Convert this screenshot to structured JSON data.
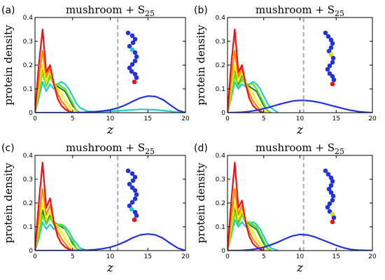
{
  "chart_data": [
    {
      "panel": "(a)",
      "type": "line",
      "title_base": "mushroom + S",
      "title_sub": "25",
      "xlabel": "z",
      "ylabel": "protein density",
      "xlim": [
        0,
        20
      ],
      "ylim": [
        0,
        0.4
      ],
      "xticks": [
        "0",
        "5",
        "10",
        "15",
        "20"
      ],
      "yticks": [
        "0",
        "0.1",
        "0.2",
        "0.3",
        "0.4"
      ],
      "cutoff_x": 11,
      "grid": false,
      "chain_highlight": {
        "index": 5,
        "color": "#22cccc"
      },
      "series": [
        {
          "color": "#0f8a1f",
          "x": [
            0,
            0.5,
            1,
            1.5,
            2,
            2.5,
            3,
            3.5,
            4,
            4.5,
            5,
            5.5,
            6
          ],
          "y": [
            0,
            0.08,
            0.18,
            0.13,
            0.16,
            0.12,
            0.11,
            0.1,
            0.09,
            0.06,
            0.03,
            0.01,
            0
          ]
        },
        {
          "color": "#22cccc",
          "x": [
            0,
            0.5,
            1,
            1.5,
            2,
            2.5,
            3,
            3.5,
            4,
            4.5,
            5,
            5.5,
            6,
            7,
            8,
            10,
            12,
            14,
            16,
            18,
            19.5
          ],
          "y": [
            0,
            0.06,
            0.13,
            0.09,
            0.12,
            0.1,
            0.12,
            0.13,
            0.12,
            0.1,
            0.07,
            0.04,
            0.02,
            0.006,
            0.004,
            0.006,
            0.01,
            0.014,
            0.012,
            0.006,
            0
          ]
        },
        {
          "color": "#66dd22",
          "x": [
            0,
            0.5,
            1,
            1.5,
            2,
            2.5,
            3,
            3.5,
            4,
            4.5,
            5,
            5.5,
            6
          ],
          "y": [
            0,
            0.08,
            0.17,
            0.11,
            0.15,
            0.12,
            0.12,
            0.11,
            0.1,
            0.07,
            0.04,
            0.01,
            0
          ]
        },
        {
          "color": "#ffee00",
          "x": [
            0,
            0.5,
            1,
            1.5,
            2,
            2.5,
            3,
            3.5,
            4,
            4.5,
            5,
            5.5
          ],
          "y": [
            0,
            0.1,
            0.2,
            0.13,
            0.17,
            0.12,
            0.1,
            0.08,
            0.05,
            0.03,
            0.01,
            0
          ]
        },
        {
          "color": "#ff8800",
          "x": [
            0,
            0.5,
            1,
            1.5,
            2,
            2.5,
            3,
            3.5,
            4,
            4.5,
            5
          ],
          "y": [
            0,
            0.14,
            0.26,
            0.15,
            0.19,
            0.12,
            0.08,
            0.05,
            0.03,
            0.01,
            0
          ]
        },
        {
          "color": "#ee1111",
          "x": [
            0,
            0.5,
            1,
            1.5,
            2,
            2.5,
            3,
            3.5,
            4,
            4.5,
            5
          ],
          "y": [
            0,
            0.2,
            0.35,
            0.17,
            0.2,
            0.12,
            0.06,
            0.03,
            0.015,
            0.005,
            0
          ]
        },
        {
          "color": "#2233dd",
          "x": [
            0,
            1,
            2,
            3,
            4,
            5,
            6,
            7,
            8,
            9,
            10,
            11,
            12,
            13,
            14,
            15,
            16,
            17,
            18,
            19,
            20
          ],
          "y": [
            0,
            0,
            0,
            0,
            0,
            0,
            0.001,
            0.002,
            0.004,
            0.007,
            0.012,
            0.02,
            0.032,
            0.048,
            0.062,
            0.07,
            0.068,
            0.055,
            0.032,
            0.01,
            0
          ]
        }
      ]
    },
    {
      "panel": "(b)",
      "type": "line",
      "title_base": "mushroom + S",
      "title_sub": "25",
      "xlabel": "z",
      "ylabel": "protein density",
      "xlim": [
        0,
        20
      ],
      "ylim": [
        0,
        0.4
      ],
      "xticks": [
        "0",
        "5",
        "10",
        "15",
        "20"
      ],
      "yticks": [
        "0",
        "0.1",
        "0.2",
        "0.3",
        "0.4"
      ],
      "cutoff_x": 10.5,
      "grid": false,
      "chain_highlight": {
        "index": 6,
        "color": "#dddd00"
      },
      "series": [
        {
          "color": "#0f8a1f",
          "x": [
            0,
            0.5,
            1,
            1.5,
            2,
            2.5,
            3,
            3.5,
            4,
            4.5,
            5,
            5.5,
            6
          ],
          "y": [
            0,
            0.08,
            0.19,
            0.12,
            0.16,
            0.12,
            0.11,
            0.1,
            0.09,
            0.06,
            0.03,
            0.01,
            0
          ]
        },
        {
          "color": "#22cccc",
          "x": [
            0,
            0.5,
            1,
            1.5,
            2,
            2.5,
            3,
            3.5,
            4,
            4.5,
            5,
            5.5,
            6,
            7
          ],
          "y": [
            0,
            0.06,
            0.13,
            0.1,
            0.12,
            0.11,
            0.12,
            0.13,
            0.12,
            0.1,
            0.07,
            0.04,
            0.02,
            0
          ]
        },
        {
          "color": "#66dd22",
          "x": [
            0,
            0.5,
            1,
            1.5,
            2,
            2.5,
            3,
            3.5,
            4,
            4.5,
            5,
            5.5,
            6
          ],
          "y": [
            0,
            0.07,
            0.16,
            0.11,
            0.14,
            0.12,
            0.12,
            0.12,
            0.1,
            0.07,
            0.04,
            0.01,
            0
          ]
        },
        {
          "color": "#ffee00",
          "x": [
            0,
            0.5,
            1,
            1.5,
            2,
            2.5,
            3,
            3.5,
            4,
            4.5,
            5,
            5.5
          ],
          "y": [
            0,
            0.1,
            0.2,
            0.13,
            0.17,
            0.12,
            0.1,
            0.08,
            0.05,
            0.03,
            0.01,
            0
          ]
        },
        {
          "color": "#ff8800",
          "x": [
            0,
            0.5,
            1,
            1.5,
            2,
            2.5,
            3,
            3.5,
            4,
            4.5,
            5
          ],
          "y": [
            0,
            0.14,
            0.26,
            0.15,
            0.19,
            0.12,
            0.08,
            0.05,
            0.03,
            0.01,
            0
          ]
        },
        {
          "color": "#ee1111",
          "x": [
            0,
            0.5,
            1,
            1.5,
            2,
            2.5,
            3,
            3.5,
            4,
            4.5,
            5
          ],
          "y": [
            0,
            0.2,
            0.35,
            0.17,
            0.2,
            0.12,
            0.06,
            0.03,
            0.015,
            0.005,
            0
          ]
        },
        {
          "color": "#2233dd",
          "x": [
            0,
            1,
            2,
            3,
            4,
            5,
            6,
            7,
            8,
            9,
            10,
            11,
            12,
            13,
            14,
            15,
            16,
            17,
            18,
            19,
            20
          ],
          "y": [
            0,
            0.001,
            0.002,
            0.005,
            0.01,
            0.017,
            0.025,
            0.034,
            0.042,
            0.049,
            0.052,
            0.051,
            0.047,
            0.041,
            0.033,
            0.025,
            0.017,
            0.01,
            0.005,
            0.002,
            0
          ]
        }
      ]
    },
    {
      "panel": "(c)",
      "type": "line",
      "title_base": "mushroom + S",
      "title_sub": "25",
      "xlabel": "z",
      "ylabel": "protein density",
      "xlim": [
        0,
        20
      ],
      "ylim": [
        0,
        0.4
      ],
      "xticks": [
        "0",
        "5",
        "10",
        "15",
        "20"
      ],
      "yticks": [
        "0",
        "0.1",
        "0.2",
        "0.3",
        "0.4"
      ],
      "cutoff_x": 11,
      "grid": false,
      "chain_highlight": {
        "index": 11,
        "color": "#22cccc"
      },
      "series": [
        {
          "color": "#0f8a1f",
          "x": [
            0,
            0.5,
            1,
            1.5,
            2,
            2.5,
            3,
            3.5,
            4,
            4.5,
            5,
            5.5,
            6
          ],
          "y": [
            0,
            0.08,
            0.17,
            0.11,
            0.15,
            0.12,
            0.11,
            0.1,
            0.09,
            0.06,
            0.03,
            0.01,
            0
          ]
        },
        {
          "color": "#22cccc",
          "x": [
            0,
            0.5,
            1,
            1.5,
            2,
            2.5,
            3,
            3.5,
            4,
            4.5,
            5,
            5.5,
            6,
            7
          ],
          "y": [
            0,
            0.05,
            0.12,
            0.09,
            0.11,
            0.09,
            0.1,
            0.11,
            0.1,
            0.08,
            0.05,
            0.03,
            0.01,
            0
          ]
        },
        {
          "color": "#66dd22",
          "x": [
            0,
            0.5,
            1,
            1.5,
            2,
            2.5,
            3,
            3.5,
            4,
            4.5,
            5,
            5.5,
            6
          ],
          "y": [
            0,
            0.07,
            0.15,
            0.11,
            0.14,
            0.11,
            0.11,
            0.11,
            0.09,
            0.06,
            0.04,
            0.01,
            0
          ]
        },
        {
          "color": "#ffee00",
          "x": [
            0,
            0.5,
            1,
            1.5,
            2,
            2.5,
            3,
            3.5,
            4,
            4.5,
            5,
            5.5
          ],
          "y": [
            0,
            0.1,
            0.2,
            0.13,
            0.16,
            0.12,
            0.1,
            0.08,
            0.05,
            0.03,
            0.01,
            0
          ]
        },
        {
          "color": "#ff8800",
          "x": [
            0,
            0.5,
            1,
            1.5,
            2,
            2.5,
            3,
            3.5,
            4,
            4.5,
            5
          ],
          "y": [
            0,
            0.14,
            0.26,
            0.15,
            0.19,
            0.12,
            0.08,
            0.05,
            0.03,
            0.01,
            0
          ]
        },
        {
          "color": "#ee1111",
          "x": [
            0,
            0.5,
            1,
            1.5,
            2,
            2.5,
            3,
            3.5,
            4,
            4.5,
            5
          ],
          "y": [
            0,
            0.2,
            0.37,
            0.18,
            0.22,
            0.12,
            0.06,
            0.03,
            0.015,
            0.005,
            0
          ]
        },
        {
          "color": "#2233dd",
          "x": [
            0,
            1,
            2,
            3,
            4,
            5,
            6,
            7,
            8,
            9,
            10,
            11,
            12,
            13,
            14,
            15,
            16,
            17,
            18,
            19,
            20
          ],
          "y": [
            0,
            0,
            0,
            0,
            0,
            0,
            0.001,
            0.002,
            0.004,
            0.008,
            0.014,
            0.024,
            0.038,
            0.054,
            0.066,
            0.07,
            0.066,
            0.052,
            0.03,
            0.01,
            0
          ]
        }
      ]
    },
    {
      "panel": "(d)",
      "type": "line",
      "title_base": "mushroom + S",
      "title_sub": "25",
      "xlabel": "z",
      "ylabel": "protein density",
      "xlim": [
        0,
        20
      ],
      "ylim": [
        0,
        0.4
      ],
      "xticks": [
        "0",
        "5",
        "10",
        "15",
        "20"
      ],
      "yticks": [
        "0",
        "0.1",
        "0.2",
        "0.3",
        "0.4"
      ],
      "cutoff_x": 10.5,
      "grid": false,
      "chain_highlight": {
        "index": 12,
        "color": "#dddd00"
      },
      "series": [
        {
          "color": "#0f8a1f",
          "x": [
            0,
            0.5,
            1,
            1.5,
            2,
            2.5,
            3,
            3.5,
            4,
            4.5,
            5,
            5.5,
            6
          ],
          "y": [
            0,
            0.08,
            0.18,
            0.12,
            0.16,
            0.12,
            0.11,
            0.1,
            0.09,
            0.06,
            0.03,
            0.01,
            0
          ]
        },
        {
          "color": "#22cccc",
          "x": [
            0,
            0.5,
            1,
            1.5,
            2,
            2.5,
            3,
            3.5,
            4,
            4.5,
            5,
            5.5,
            6,
            7
          ],
          "y": [
            0,
            0.06,
            0.13,
            0.1,
            0.12,
            0.1,
            0.11,
            0.12,
            0.11,
            0.09,
            0.06,
            0.03,
            0.01,
            0
          ]
        },
        {
          "color": "#66dd22",
          "x": [
            0,
            0.5,
            1,
            1.5,
            2,
            2.5,
            3,
            3.5,
            4,
            4.5,
            5,
            5.5,
            6
          ],
          "y": [
            0,
            0.07,
            0.16,
            0.11,
            0.15,
            0.12,
            0.12,
            0.11,
            0.1,
            0.07,
            0.04,
            0.01,
            0
          ]
        },
        {
          "color": "#ffee00",
          "x": [
            0,
            0.5,
            1,
            1.5,
            2,
            2.5,
            3,
            3.5,
            4,
            4.5,
            5,
            5.5
          ],
          "y": [
            0,
            0.1,
            0.2,
            0.13,
            0.17,
            0.12,
            0.1,
            0.08,
            0.05,
            0.03,
            0.01,
            0
          ]
        },
        {
          "color": "#ff8800",
          "x": [
            0,
            0.5,
            1,
            1.5,
            2,
            2.5,
            3,
            3.5,
            4,
            4.5,
            5
          ],
          "y": [
            0,
            0.14,
            0.26,
            0.15,
            0.19,
            0.12,
            0.08,
            0.05,
            0.03,
            0.01,
            0
          ]
        },
        {
          "color": "#ee1111",
          "x": [
            0,
            0.5,
            1,
            1.5,
            2,
            2.5,
            3,
            3.5,
            4,
            4.5,
            5
          ],
          "y": [
            0,
            0.2,
            0.37,
            0.18,
            0.21,
            0.12,
            0.06,
            0.03,
            0.015,
            0.005,
            0
          ]
        },
        {
          "color": "#2233dd",
          "x": [
            0,
            1,
            2,
            3,
            4,
            5,
            6,
            7,
            8,
            9,
            10,
            11,
            12,
            13,
            14,
            15,
            16,
            17,
            18,
            19,
            20
          ],
          "y": [
            0,
            0,
            0.001,
            0.003,
            0.007,
            0.014,
            0.024,
            0.036,
            0.05,
            0.062,
            0.068,
            0.066,
            0.058,
            0.046,
            0.034,
            0.022,
            0.012,
            0.005,
            0.002,
            0.001,
            0
          ]
        }
      ]
    }
  ]
}
